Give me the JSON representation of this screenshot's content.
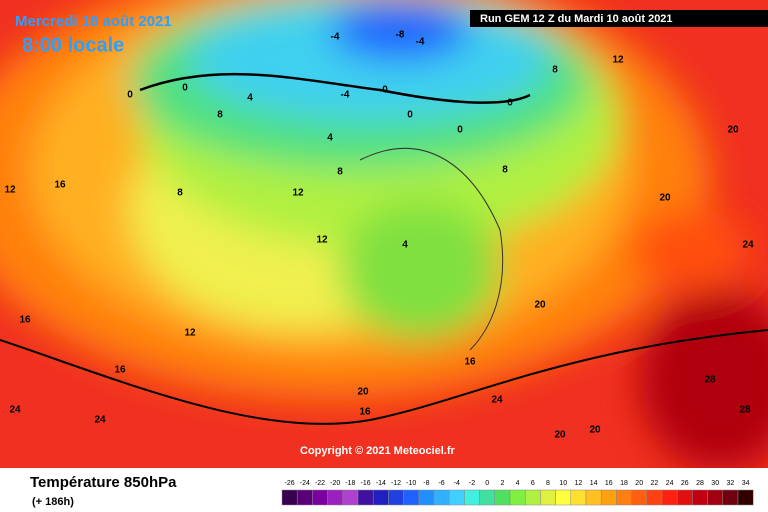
{
  "header": {
    "date": "Mercredi 18 août 2021",
    "time": "8:00 locale",
    "run": "Run GEM 12 Z du Mardi 10 août 2021"
  },
  "copyright": "Copyright © 2021 Meteociel.fr",
  "footer": {
    "title": "Température 850hPa",
    "lead": "(+ 186h)"
  },
  "legend": {
    "ticks": [
      -26,
      -24,
      -22,
      -20,
      -18,
      -16,
      -14,
      -12,
      -10,
      -8,
      -6,
      -4,
      -2,
      0,
      2,
      4,
      6,
      8,
      10,
      12,
      14,
      16,
      18,
      20,
      22,
      24,
      26,
      28,
      30,
      32,
      34
    ],
    "colors": [
      "#3a0050",
      "#5a0078",
      "#7a00a0",
      "#9a20c0",
      "#b040d0",
      "#4010a0",
      "#2020c0",
      "#2040e0",
      "#2060ff",
      "#2090ff",
      "#30b0ff",
      "#40d0ff",
      "#40f0e0",
      "#40e0a0",
      "#50e060",
      "#80f040",
      "#b0f040",
      "#e0f040",
      "#ffff40",
      "#ffe030",
      "#ffc020",
      "#ffa010",
      "#ff8010",
      "#ff6010",
      "#ff4010",
      "#ff2010",
      "#e01010",
      "#c00010",
      "#a00010",
      "#700010",
      "#300000"
    ]
  },
  "map": {
    "contour_labels": [
      -8,
      -4,
      -4,
      0,
      0,
      0,
      0,
      0,
      0,
      -4,
      4,
      4,
      8,
      8,
      8,
      8,
      8,
      12,
      12,
      12,
      20,
      20,
      16,
      16,
      24,
      24,
      24,
      16,
      20,
      24,
      28,
      28,
      20,
      20,
      16,
      4,
      20,
      16,
      12,
      12
    ]
  }
}
